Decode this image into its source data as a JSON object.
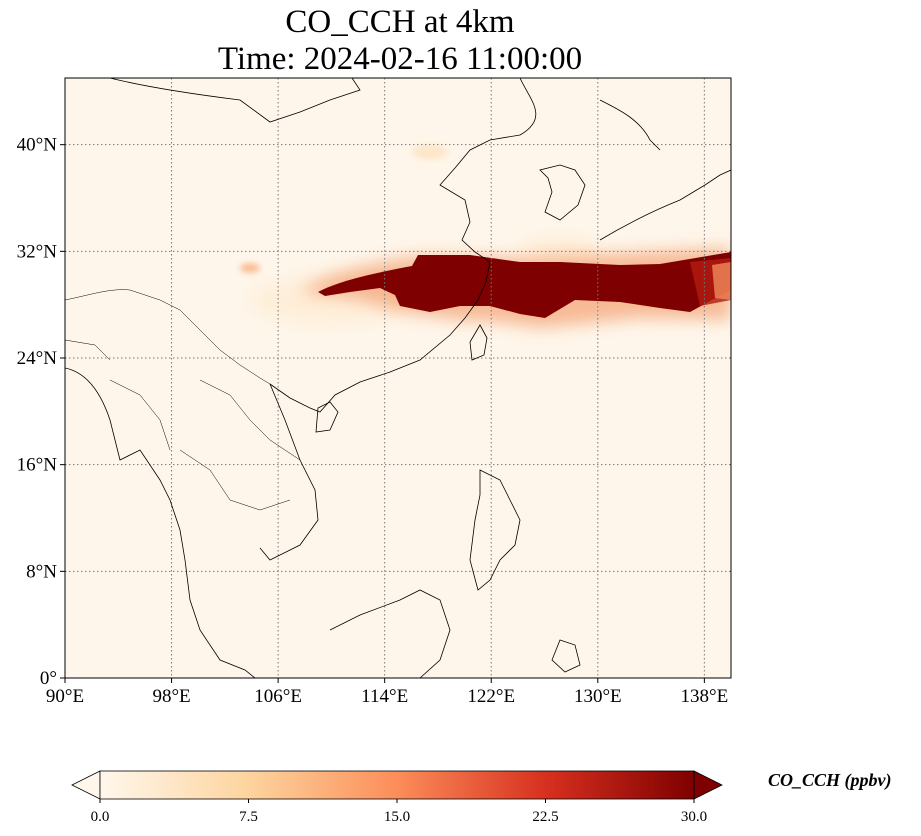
{
  "title": {
    "line1": "CO_CCH at 4km",
    "line2": "Time: 2024-02-16 11:00:00"
  },
  "map": {
    "extent": {
      "lon_min": 90,
      "lon_max": 140,
      "lat_min": 0,
      "lat_max": 45
    },
    "gridlines": "dotted",
    "x_ticks": [
      {
        "value": 90,
        "label": "90°E"
      },
      {
        "value": 98,
        "label": "98°E"
      },
      {
        "value": 106,
        "label": "106°E"
      },
      {
        "value": 114,
        "label": "114°E"
      },
      {
        "value": 122,
        "label": "122°E"
      },
      {
        "value": 130,
        "label": "130°E"
      },
      {
        "value": 138,
        "label": "138°E"
      }
    ],
    "y_ticks": [
      {
        "value": 0,
        "label": "0°"
      },
      {
        "value": 8,
        "label": "8°N"
      },
      {
        "value": 16,
        "label": "16°N"
      },
      {
        "value": 24,
        "label": "24°N"
      },
      {
        "value": 32,
        "label": "32°N"
      },
      {
        "value": 40,
        "label": "40°N"
      }
    ],
    "background_color": "#fef6ea",
    "plume_color": "#7f0000"
  },
  "colorbar": {
    "label": "CO_CCH (ppbv)",
    "min": 0,
    "max": 30,
    "ticks": [
      "0.0",
      "7.5",
      "15.0",
      "22.5",
      "30.0"
    ],
    "colormap": [
      "#fff7ec",
      "#fdd49e",
      "#fc8d59",
      "#d7301f",
      "#7f0000"
    ],
    "extend": "both"
  }
}
